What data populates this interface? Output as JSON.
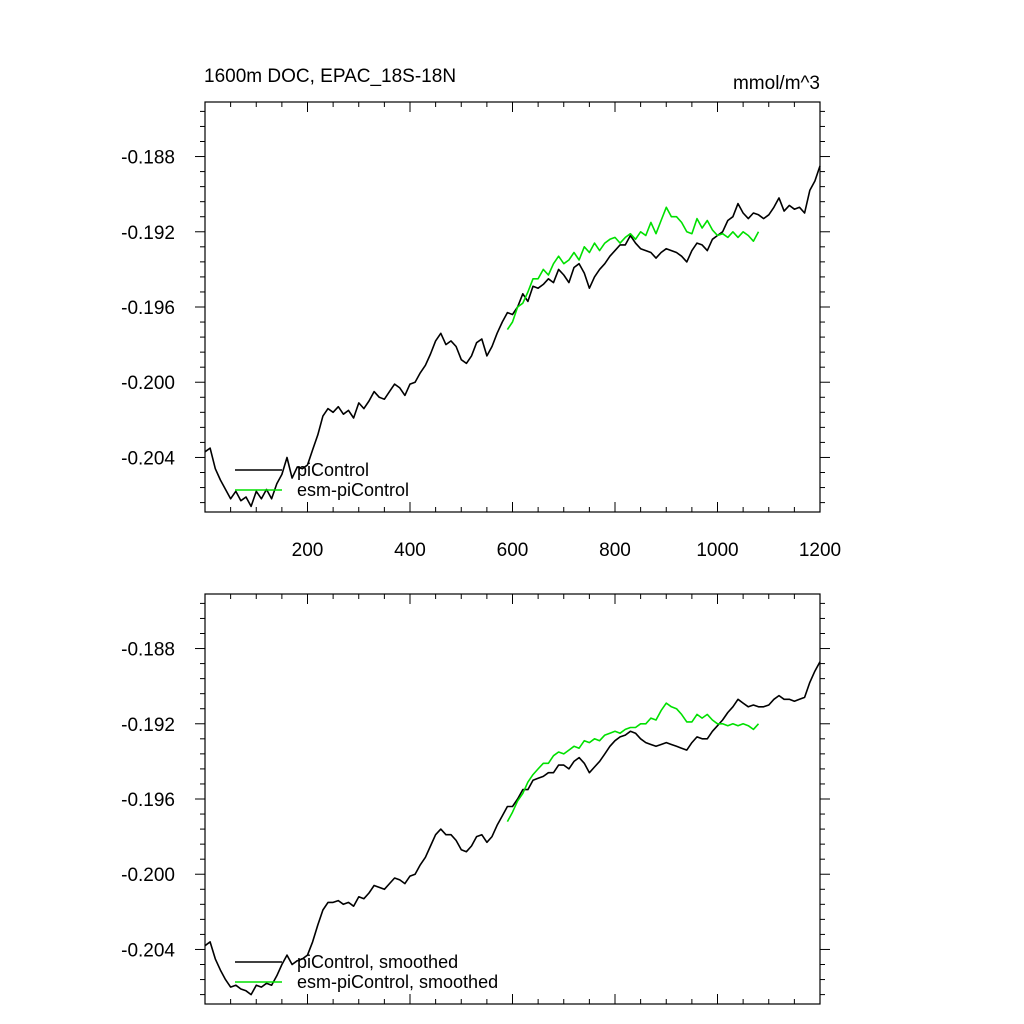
{
  "chart_data": [
    {
      "type": "line",
      "title": "1600m DOC, EPAC_18S-18N",
      "units": "mmol/m^3",
      "xlim": [
        0,
        1200
      ],
      "ylim": [
        -0.2069,
        -0.1851
      ],
      "xticks": [
        200,
        400,
        600,
        800,
        1000,
        1200
      ],
      "xtick_labels": [
        "200",
        "400",
        "600",
        "800",
        "1000",
        "1200"
      ],
      "yticks": [
        -0.188,
        -0.192,
        -0.196,
        -0.2,
        -0.204
      ],
      "ytick_labels": [
        "-0.188",
        "-0.192",
        "-0.196",
        "-0.200",
        "-0.204"
      ],
      "grid": false,
      "legend_position": "bottom-left",
      "series": [
        {
          "name": "piControl",
          "color": "#000000",
          "x": [
            0,
            10,
            20,
            30,
            40,
            50,
            60,
            70,
            80,
            90,
            100,
            110,
            120,
            130,
            140,
            150,
            160,
            170,
            180,
            190,
            200,
            210,
            220,
            230,
            240,
            250,
            260,
            270,
            280,
            290,
            300,
            310,
            320,
            330,
            340,
            350,
            360,
            370,
            380,
            390,
            400,
            410,
            420,
            430,
            440,
            450,
            460,
            470,
            480,
            490,
            500,
            510,
            520,
            530,
            540,
            550,
            560,
            570,
            580,
            590,
            600,
            610,
            620,
            630,
            640,
            650,
            660,
            670,
            680,
            690,
            700,
            710,
            720,
            730,
            740,
            750,
            760,
            770,
            780,
            790,
            800,
            810,
            820,
            830,
            840,
            850,
            860,
            870,
            880,
            890,
            900,
            910,
            920,
            930,
            940,
            950,
            960,
            970,
            980,
            990,
            1000,
            1010,
            1020,
            1030,
            1040,
            1050,
            1060,
            1070,
            1080,
            1090,
            1100,
            1110,
            1120,
            1130,
            1140,
            1150,
            1160,
            1170,
            1180,
            1190,
            1200
          ],
          "y": [
            -0.2037,
            -0.2035,
            -0.2046,
            -0.2052,
            -0.2057,
            -0.2062,
            -0.2058,
            -0.2063,
            -0.2061,
            -0.2066,
            -0.2058,
            -0.2062,
            -0.2057,
            -0.2062,
            -0.2054,
            -0.2049,
            -0.204,
            -0.2051,
            -0.2045,
            -0.2046,
            -0.2044,
            -0.2036,
            -0.2028,
            -0.2018,
            -0.2014,
            -0.2016,
            -0.2013,
            -0.2017,
            -0.2015,
            -0.2019,
            -0.2011,
            -0.2014,
            -0.201,
            -0.2005,
            -0.2008,
            -0.2009,
            -0.2005,
            -0.2001,
            -0.2003,
            -0.2007,
            -0.2001,
            -0.2,
            -0.1995,
            -0.1991,
            -0.1985,
            -0.1978,
            -0.1974,
            -0.198,
            -0.1978,
            -0.1981,
            -0.1988,
            -0.199,
            -0.1986,
            -0.1979,
            -0.1977,
            -0.1986,
            -0.1981,
            -0.1974,
            -0.1968,
            -0.1963,
            -0.1964,
            -0.196,
            -0.1953,
            -0.1957,
            -0.1949,
            -0.195,
            -0.1948,
            -0.1945,
            -0.1947,
            -0.194,
            -0.1943,
            -0.1947,
            -0.1939,
            -0.1937,
            -0.1942,
            -0.195,
            -0.1944,
            -0.194,
            -0.1937,
            -0.1933,
            -0.193,
            -0.1927,
            -0.1927,
            -0.1922,
            -0.1926,
            -0.1929,
            -0.193,
            -0.1931,
            -0.1934,
            -0.1931,
            -0.1929,
            -0.193,
            -0.1931,
            -0.1933,
            -0.1936,
            -0.193,
            -0.1926,
            -0.1927,
            -0.193,
            -0.1924,
            -0.1922,
            -0.192,
            -0.1914,
            -0.1912,
            -0.1905,
            -0.191,
            -0.1913,
            -0.191,
            -0.1911,
            -0.1913,
            -0.1911,
            -0.1907,
            -0.1902,
            -0.1909,
            -0.1906,
            -0.1908,
            -0.1907,
            -0.191,
            -0.1898,
            -0.1893,
            -0.1885
          ]
        },
        {
          "name": "esm-piControl",
          "color": "#00e000",
          "x": [
            590,
            600,
            610,
            620,
            630,
            640,
            650,
            660,
            670,
            680,
            690,
            700,
            710,
            720,
            730,
            740,
            750,
            760,
            770,
            780,
            790,
            800,
            810,
            820,
            830,
            840,
            850,
            860,
            870,
            880,
            890,
            900,
            910,
            920,
            930,
            940,
            950,
            960,
            970,
            980,
            990,
            1000,
            1010,
            1020,
            1030,
            1040,
            1050,
            1060,
            1070,
            1080
          ],
          "y": [
            -0.1972,
            -0.1968,
            -0.196,
            -0.1958,
            -0.1952,
            -0.1945,
            -0.1945,
            -0.194,
            -0.1943,
            -0.1937,
            -0.1933,
            -0.1937,
            -0.1935,
            -0.1931,
            -0.1935,
            -0.1928,
            -0.1931,
            -0.1926,
            -0.193,
            -0.1926,
            -0.1924,
            -0.1923,
            -0.1926,
            -0.1923,
            -0.1921,
            -0.1924,
            -0.192,
            -0.1922,
            -0.1915,
            -0.1921,
            -0.1914,
            -0.1907,
            -0.1912,
            -0.1912,
            -0.1915,
            -0.192,
            -0.1921,
            -0.1913,
            -0.1918,
            -0.1914,
            -0.1919,
            -0.1922,
            -0.1921,
            -0.1923,
            -0.192,
            -0.1923,
            -0.192,
            -0.1922,
            -0.1925,
            -0.192
          ]
        }
      ]
    },
    {
      "type": "line",
      "xlim": [
        0,
        1200
      ],
      "ylim": [
        -0.2069,
        -0.1851
      ],
      "xticks": [
        200,
        400,
        600,
        800,
        1000,
        1200
      ],
      "yticks": [
        -0.188,
        -0.192,
        -0.196,
        -0.2,
        -0.204
      ],
      "ytick_labels": [
        "-0.188",
        "-0.192",
        "-0.196",
        "-0.200",
        "-0.204"
      ],
      "grid": false,
      "legend_position": "bottom-left",
      "series": [
        {
          "name": "piControl, smoothed",
          "color": "#000000",
          "x": [
            0,
            10,
            20,
            30,
            40,
            50,
            60,
            70,
            80,
            90,
            100,
            110,
            120,
            130,
            140,
            150,
            160,
            170,
            180,
            190,
            200,
            210,
            220,
            230,
            240,
            250,
            260,
            270,
            280,
            290,
            300,
            310,
            320,
            330,
            340,
            350,
            360,
            370,
            380,
            390,
            400,
            410,
            420,
            430,
            440,
            450,
            460,
            470,
            480,
            490,
            500,
            510,
            520,
            530,
            540,
            550,
            560,
            570,
            580,
            590,
            600,
            610,
            620,
            630,
            640,
            650,
            660,
            670,
            680,
            690,
            700,
            710,
            720,
            730,
            740,
            750,
            760,
            770,
            780,
            790,
            800,
            810,
            820,
            830,
            840,
            850,
            860,
            870,
            880,
            890,
            900,
            910,
            920,
            930,
            940,
            950,
            960,
            970,
            980,
            990,
            1000,
            1010,
            1020,
            1030,
            1040,
            1050,
            1060,
            1070,
            1080,
            1090,
            1100,
            1110,
            1120,
            1130,
            1140,
            1150,
            1160,
            1170,
            1180,
            1190,
            1200
          ],
          "y": [
            -0.2038,
            -0.2036,
            -0.2045,
            -0.2051,
            -0.2056,
            -0.206,
            -0.2059,
            -0.2061,
            -0.2062,
            -0.2064,
            -0.2059,
            -0.206,
            -0.2058,
            -0.2059,
            -0.2054,
            -0.2048,
            -0.2043,
            -0.2048,
            -0.2046,
            -0.2045,
            -0.2043,
            -0.2036,
            -0.2027,
            -0.2019,
            -0.2015,
            -0.2015,
            -0.2014,
            -0.2016,
            -0.2015,
            -0.2017,
            -0.2012,
            -0.2013,
            -0.201,
            -0.2006,
            -0.2007,
            -0.2008,
            -0.2005,
            -0.2002,
            -0.2003,
            -0.2005,
            -0.2001,
            -0.2,
            -0.1995,
            -0.1991,
            -0.1985,
            -0.1979,
            -0.1976,
            -0.1979,
            -0.1979,
            -0.1982,
            -0.1987,
            -0.1988,
            -0.1985,
            -0.198,
            -0.1979,
            -0.1983,
            -0.198,
            -0.1974,
            -0.1969,
            -0.1964,
            -0.1964,
            -0.196,
            -0.1955,
            -0.1955,
            -0.195,
            -0.1949,
            -0.1948,
            -0.1946,
            -0.1946,
            -0.1942,
            -0.1942,
            -0.1944,
            -0.194,
            -0.1938,
            -0.1941,
            -0.1946,
            -0.1943,
            -0.194,
            -0.1936,
            -0.1932,
            -0.1929,
            -0.1927,
            -0.1926,
            -0.1924,
            -0.1925,
            -0.1928,
            -0.193,
            -0.1931,
            -0.1932,
            -0.1931,
            -0.193,
            -0.1931,
            -0.1932,
            -0.1933,
            -0.1934,
            -0.193,
            -0.1927,
            -0.1928,
            -0.1928,
            -0.1924,
            -0.1921,
            -0.1918,
            -0.1914,
            -0.1911,
            -0.1907,
            -0.1909,
            -0.1911,
            -0.191,
            -0.1911,
            -0.1911,
            -0.191,
            -0.1907,
            -0.1905,
            -0.1907,
            -0.1907,
            -0.1908,
            -0.1907,
            -0.1906,
            -0.1898,
            -0.1892,
            -0.1887
          ]
        },
        {
          "name": "esm-piControl, smoothed",
          "color": "#00e000",
          "x": [
            590,
            600,
            610,
            620,
            630,
            640,
            650,
            660,
            670,
            680,
            690,
            700,
            710,
            720,
            730,
            740,
            750,
            760,
            770,
            780,
            790,
            800,
            810,
            820,
            830,
            840,
            850,
            860,
            870,
            880,
            890,
            900,
            910,
            920,
            930,
            940,
            950,
            960,
            970,
            980,
            990,
            1000,
            1010,
            1020,
            1030,
            1040,
            1050,
            1060,
            1070,
            1080
          ],
          "y": [
            -0.1972,
            -0.1967,
            -0.1961,
            -0.1957,
            -0.1951,
            -0.1947,
            -0.1944,
            -0.1941,
            -0.1941,
            -0.1937,
            -0.1935,
            -0.1936,
            -0.1934,
            -0.1932,
            -0.1933,
            -0.1929,
            -0.193,
            -0.1928,
            -0.1929,
            -0.1926,
            -0.1925,
            -0.1924,
            -0.1925,
            -0.1923,
            -0.1922,
            -0.1922,
            -0.192,
            -0.192,
            -0.1917,
            -0.1918,
            -0.1913,
            -0.1909,
            -0.1911,
            -0.1912,
            -0.1915,
            -0.1919,
            -0.1919,
            -0.1915,
            -0.1917,
            -0.1915,
            -0.1918,
            -0.192,
            -0.192,
            -0.1921,
            -0.192,
            -0.1921,
            -0.192,
            -0.1921,
            -0.1923,
            -0.192
          ]
        }
      ]
    }
  ]
}
